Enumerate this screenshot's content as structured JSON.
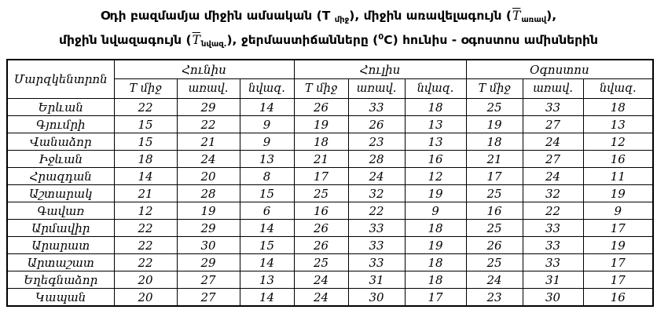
{
  "title": {
    "l1_1": "Օդի բազմամյա միջին ամսական (T ",
    "l1_sub1": "միջ",
    "l1_2": "), միջին առավելագույն (",
    "t": "T",
    "l1_sub2": "առավ",
    "l1_3": "),",
    "l2_1": "միջին նվազագույն (",
    "l2_sub1": "նվազ.",
    "l2_2": "),  ջերմաստիճանները  (",
    "l2_sup": "0",
    "l2_3": "C) հունիս - օգոստոս ամիսներին"
  },
  "table": {
    "corner": "Մարզկենտրոն",
    "months": [
      "Հունիս",
      "Հուլիս",
      "Օգոստոս"
    ],
    "sub_headers": [
      "T միջ",
      "առավ.",
      "նվազ."
    ],
    "rows": [
      {
        "city": "Երևան",
        "values": [
          22,
          29,
          14,
          26,
          33,
          18,
          25,
          33,
          18
        ]
      },
      {
        "city": "Գյումրի",
        "values": [
          15,
          22,
          9,
          19,
          26,
          13,
          19,
          27,
          13
        ]
      },
      {
        "city": "Վանաձոր",
        "values": [
          15,
          21,
          9,
          18,
          23,
          13,
          18,
          24,
          12
        ]
      },
      {
        "city": "Իջևան",
        "values": [
          18,
          24,
          13,
          21,
          28,
          16,
          21,
          27,
          16
        ]
      },
      {
        "city": "Հրազդան",
        "values": [
          14,
          20,
          8,
          17,
          24,
          12,
          17,
          24,
          11
        ]
      },
      {
        "city": "Աշտարակ",
        "values": [
          21,
          28,
          15,
          25,
          32,
          19,
          25,
          32,
          19
        ]
      },
      {
        "city": "Գավառ",
        "values": [
          12,
          19,
          6,
          16,
          22,
          9,
          16,
          22,
          9
        ]
      },
      {
        "city": "Արմավիր",
        "values": [
          22,
          29,
          14,
          26,
          33,
          18,
          25,
          33,
          17
        ]
      },
      {
        "city": "Արարատ",
        "values": [
          22,
          30,
          15,
          26,
          33,
          19,
          26,
          33,
          19
        ]
      },
      {
        "city": "Արտաշատ",
        "values": [
          22,
          29,
          14,
          25,
          33,
          18,
          25,
          33,
          17
        ]
      },
      {
        "city": "Եղեգնաձոր",
        "values": [
          20,
          27,
          13,
          24,
          31,
          18,
          24,
          31,
          17
        ]
      },
      {
        "city": "Կապան",
        "values": [
          20,
          27,
          14,
          24,
          30,
          17,
          23,
          30,
          16
        ]
      }
    ]
  },
  "colors": {
    "text": "#000000",
    "background": "#ffffff",
    "border": "#000000"
  }
}
